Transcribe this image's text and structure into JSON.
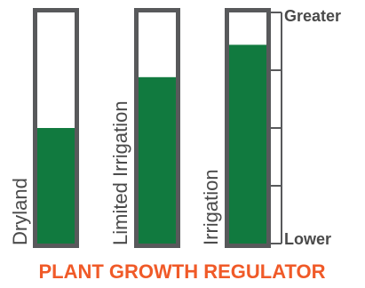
{
  "chart_data": {
    "type": "bar",
    "title": "PLANT GROWTH REGULATOR",
    "categories": [
      "Dryland",
      "Limited Irrigation",
      "Irrigation"
    ],
    "values": [
      0.5,
      0.72,
      0.86
    ],
    "ylim": [
      0,
      1
    ],
    "scale_top_label": "Greater",
    "scale_bottom_label": "Lower",
    "grid": false,
    "colors": {
      "fill": "#117A3F",
      "outline": "#58595B",
      "title": "#F05A28",
      "text": "#4A4A4A"
    }
  }
}
